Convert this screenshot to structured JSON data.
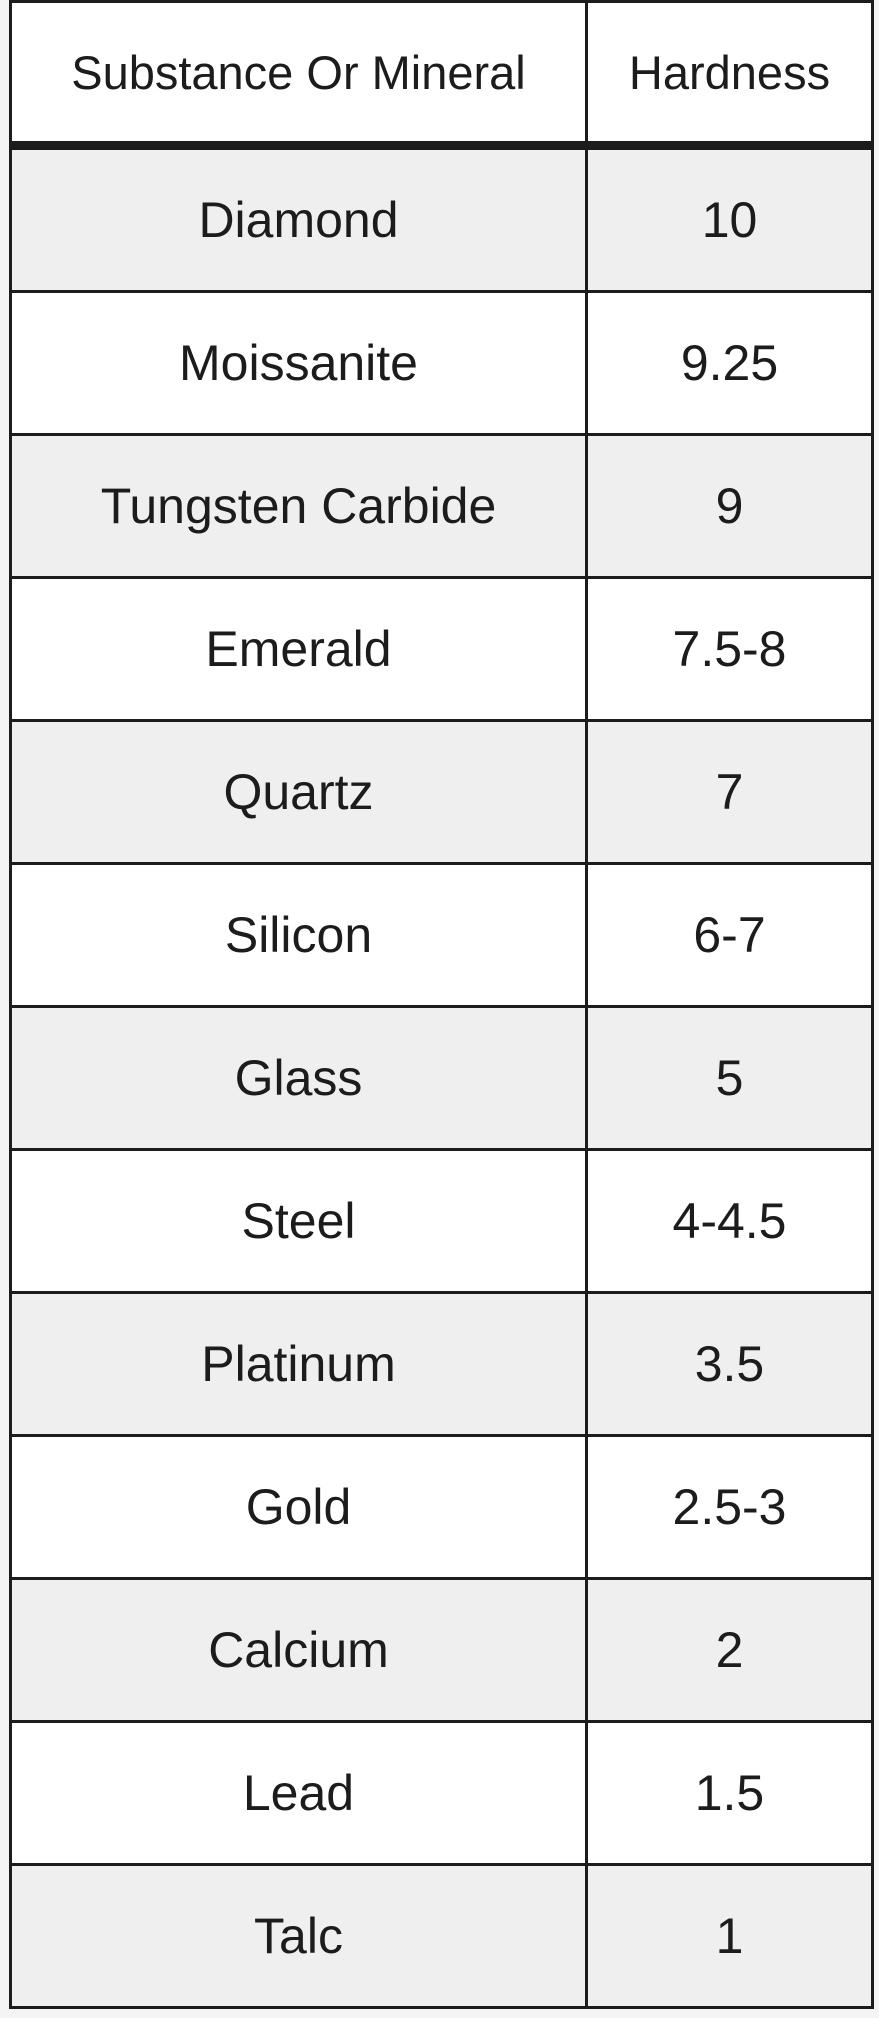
{
  "table": {
    "headers": [
      "Substance Or Mineral",
      "Hardness"
    ],
    "rows": [
      [
        "Diamond",
        "10"
      ],
      [
        "Moissanite",
        "9.25"
      ],
      [
        "Tungsten Carbide",
        "9"
      ],
      [
        "Emerald",
        "7.5-8"
      ],
      [
        "Quartz",
        "7"
      ],
      [
        "Silicon",
        "6-7"
      ],
      [
        "Glass",
        "5"
      ],
      [
        "Steel",
        "4-4.5"
      ],
      [
        "Platinum",
        "3.5"
      ],
      [
        "Gold",
        "2.5-3"
      ],
      [
        "Calcium",
        "2"
      ],
      [
        "Lead",
        "1.5"
      ],
      [
        "Talc",
        "1"
      ]
    ]
  }
}
